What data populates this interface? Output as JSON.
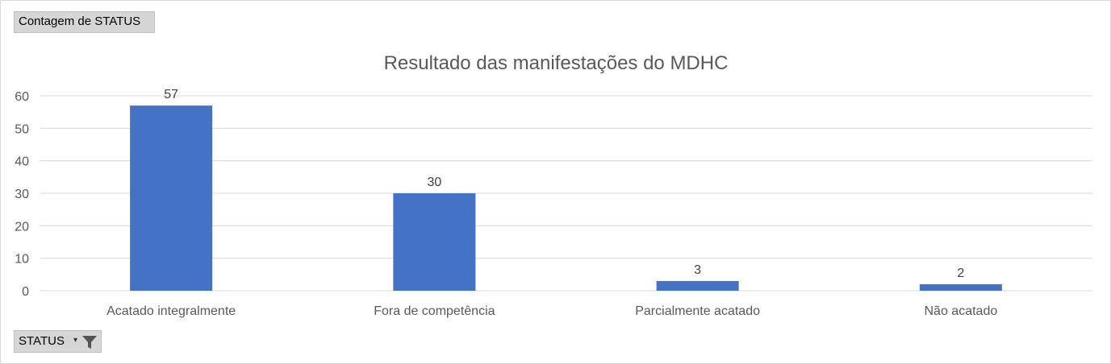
{
  "pivot": {
    "values_button": "Contagem de STATUS",
    "axis_button": "STATUS",
    "filter_icon": "filter-icon"
  },
  "colors": {
    "bar": "#4472c4",
    "grid": "#d9d9d9",
    "text": "#595959",
    "button_bg": "#d6d6d6"
  },
  "chart_data": {
    "type": "bar",
    "title": "Resultado das manifestações do MDHC",
    "categories": [
      "Acatado integralmente",
      "Fora de competência",
      "Parcialmente acatado",
      "Não acatado"
    ],
    "series": [
      {
        "values": [
          57,
          30,
          3,
          2
        ]
      }
    ],
    "data_labels": [
      "57",
      "30",
      "3",
      "2"
    ],
    "ylim": [
      0,
      60
    ],
    "yticks": [
      0,
      10,
      20,
      30,
      40,
      50,
      60
    ],
    "grid": true,
    "legend": "none"
  }
}
